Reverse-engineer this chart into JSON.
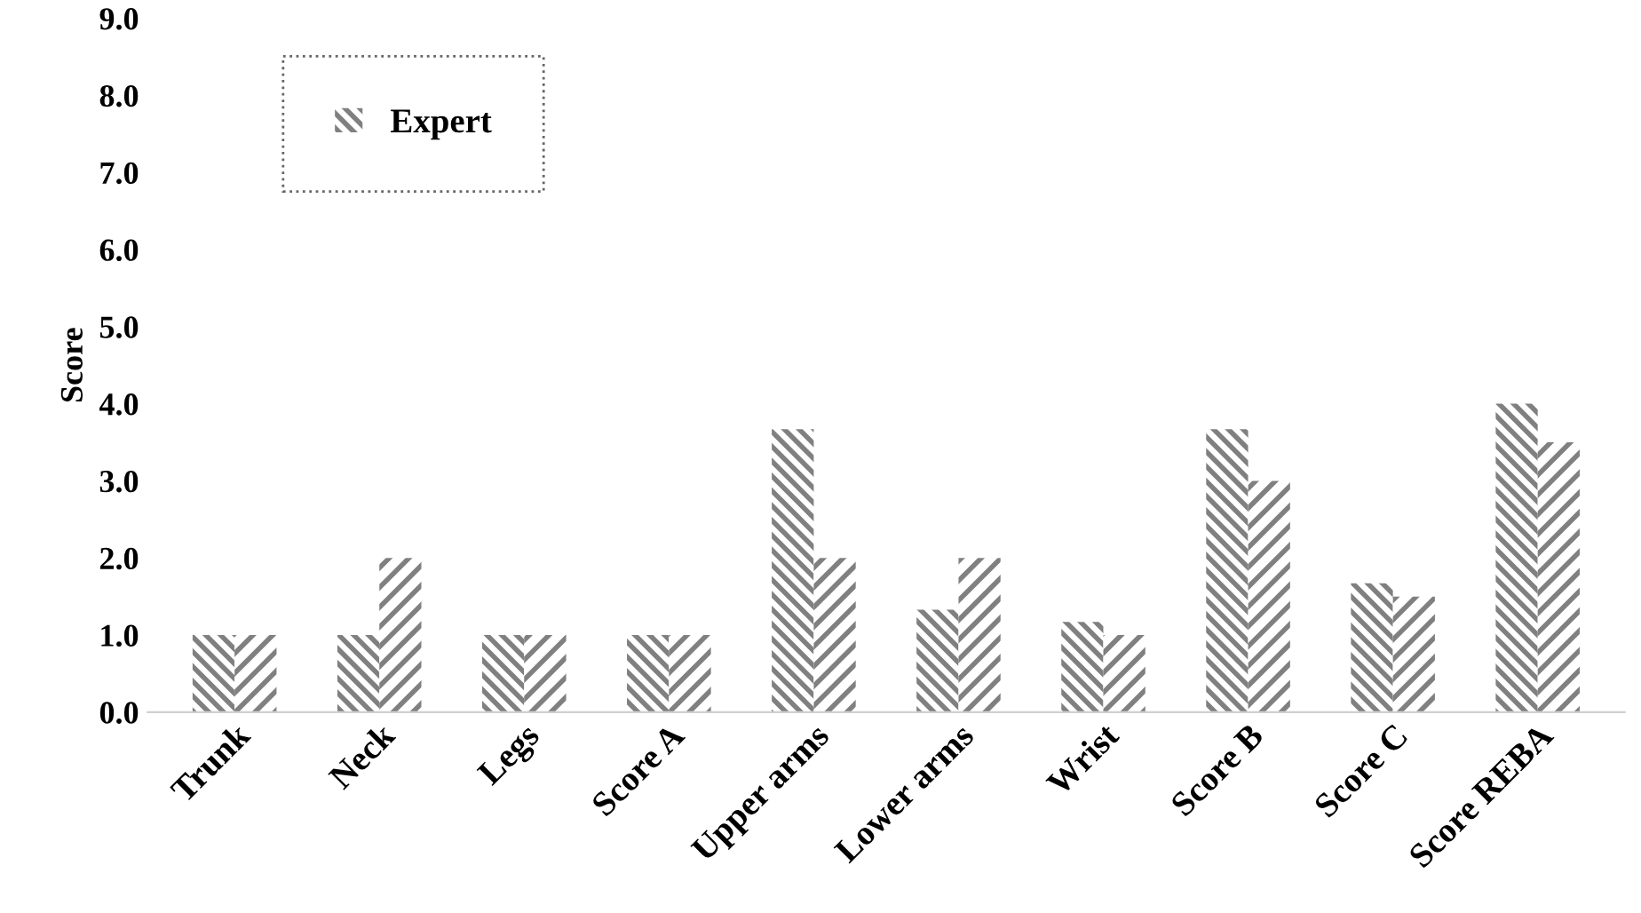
{
  "chart_data": {
    "type": "bar",
    "ylabel": "Score",
    "categories": [
      "Trunk",
      "Neck",
      "Legs",
      "Score A",
      "Upper arms",
      "Lower arms",
      "Wrist",
      "Score B",
      "Score C",
      "Score REBA"
    ],
    "series": [
      {
        "name": "Expert",
        "color": "#808080",
        "values": [
          1,
          1,
          1,
          1,
          3.67,
          1.33,
          1.17,
          3.67,
          1.67,
          4
        ]
      },
      {
        "color": "#808080",
        "values": [
          1,
          2,
          1,
          1,
          2,
          2,
          1,
          3,
          1.5,
          3.5
        ]
      }
    ],
    "ylim": [
      0,
      9
    ],
    "yticks": [
      {
        "value": 0,
        "label": "0.0"
      },
      {
        "value": 1,
        "label": "1.0"
      },
      {
        "value": 2,
        "label": "2.0"
      },
      {
        "value": 3,
        "label": "3.0"
      },
      {
        "value": 4,
        "label": "4.0"
      },
      {
        "value": 5,
        "label": "5.0"
      },
      {
        "value": 6,
        "label": "6.0"
      },
      {
        "value": 7,
        "label": "7.0"
      },
      {
        "value": 8,
        "label": "8.0"
      },
      {
        "value": 9,
        "label": "9.0"
      }
    ],
    "grid": false,
    "legend": "top left"
  }
}
